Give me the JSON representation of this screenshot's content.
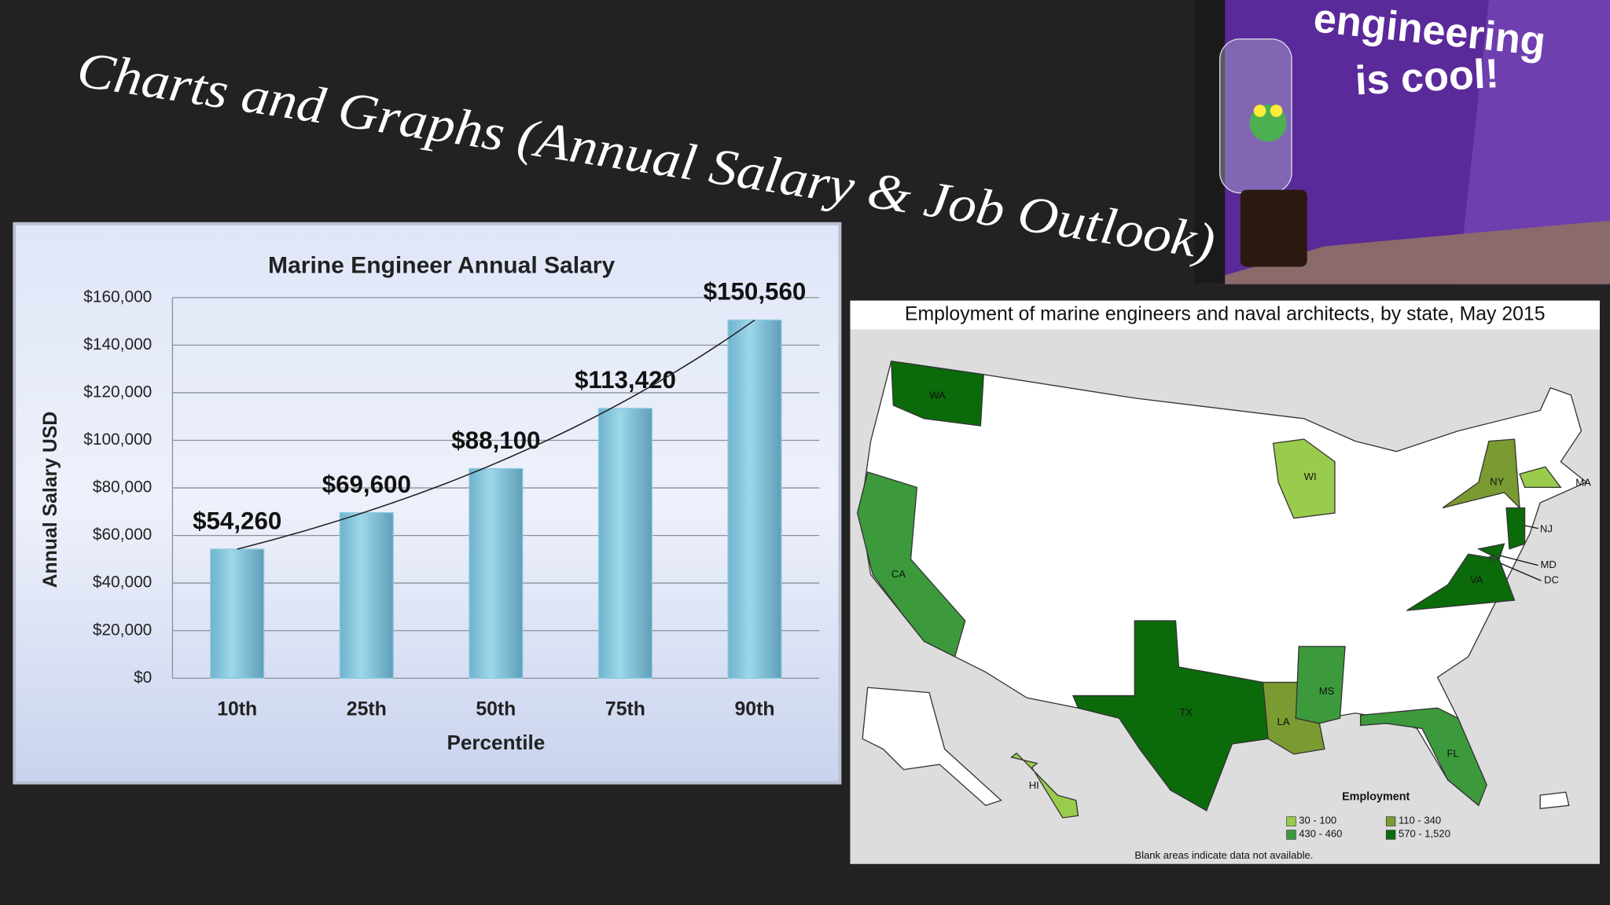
{
  "slide": {
    "title": "Charts and Graphs (Annual Salary & Job Outlook)"
  },
  "chart_data": {
    "type": "bar",
    "title": "Marine Engineer Annual Salary",
    "x_label": "Percentile",
    "y_label": "Annual Salary USD",
    "categories": [
      "10th",
      "25th",
      "50th",
      "75th",
      "90th"
    ],
    "values": [
      54260,
      69600,
      88100,
      113420,
      150560
    ],
    "value_labels": [
      "$54,260",
      "$69,600",
      "$88,100",
      "$113,420",
      "$150,560"
    ],
    "color": "#8ccbe0",
    "ylim": [
      0,
      160000
    ],
    "yticks": [
      {
        "value": 0,
        "label": "$0"
      },
      {
        "value": 20000,
        "label": "$20,000"
      },
      {
        "value": 40000,
        "label": "$40,000"
      },
      {
        "value": 60000,
        "label": "$60,000"
      },
      {
        "value": 80000,
        "label": "$80,000"
      },
      {
        "value": 100000,
        "label": "$100,000"
      },
      {
        "value": 120000,
        "label": "$120,000"
      },
      {
        "value": 140000,
        "label": "$140,000"
      },
      {
        "value": 160000,
        "label": "$160,000"
      }
    ],
    "grid": true
  },
  "map": {
    "title": "Employment of marine engineers and naval architects, by state, May 2015",
    "states": [
      {
        "label": "WA",
        "color": "#0b6b0b"
      },
      {
        "label": "CA",
        "color": "#3c9a3c"
      },
      {
        "label": "TX",
        "color": "#0b6b0b"
      },
      {
        "label": "LA",
        "color": "#7a9a32"
      },
      {
        "label": "MS",
        "color": "#3c9a3c"
      },
      {
        "label": "FL",
        "color": "#3c9a3c"
      },
      {
        "label": "VA",
        "color": "#0b6b0b"
      },
      {
        "label": "WI",
        "color": "#99cc4c"
      },
      {
        "label": "NY",
        "color": "#7a9a32"
      },
      {
        "label": "MA",
        "color": "#99cc4c"
      },
      {
        "label": "NJ",
        "color": "#0b6b0b"
      },
      {
        "label": "MD",
        "color": "#0b6b0b"
      },
      {
        "label": "DC",
        "color": "#0b6b0b"
      },
      {
        "label": "HI",
        "color": "#99cc4c"
      }
    ],
    "legend": {
      "title": "Employment",
      "items": [
        {
          "label": "30 - 100",
          "color": "#99cc4c"
        },
        {
          "label": "110 - 340",
          "color": "#7a9a32"
        },
        {
          "label": "430 - 460",
          "color": "#3c9a3c"
        },
        {
          "label": "570 - 1,520",
          "color": "#0b6b0b"
        }
      ]
    },
    "note": "Blank areas indicate data not available."
  },
  "photo": {
    "text": [
      "engineering",
      "is cool!"
    ]
  }
}
